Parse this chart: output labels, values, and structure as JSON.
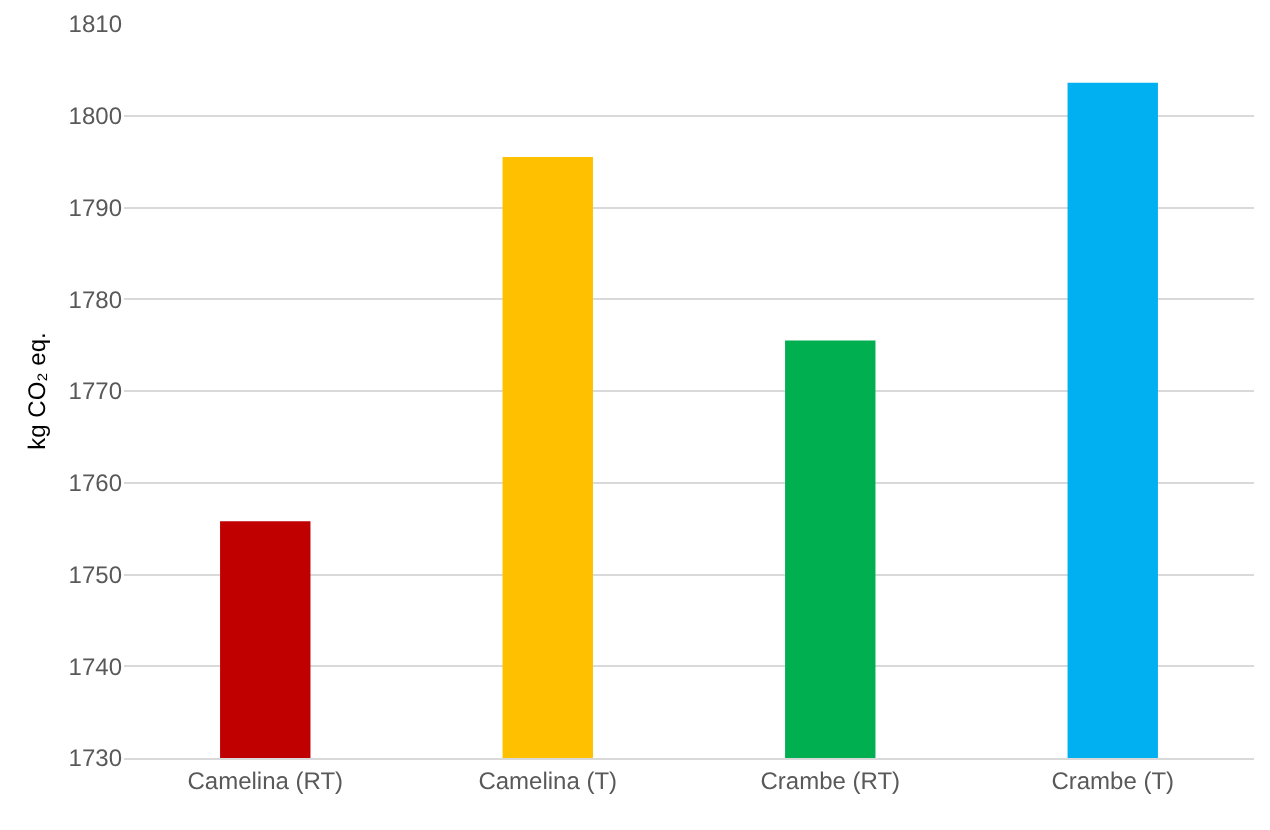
{
  "chart_data": {
    "type": "bar",
    "ylabel": "kg CO₂ eq.",
    "categories": [
      "Camelina (RT)",
      "Camelina (T)",
      "Crambe (RT)",
      "Crambe (T)"
    ],
    "values": [
      1755.8,
      1795.5,
      1775.5,
      1803.6
    ],
    "colors": [
      "#c00000",
      "#ffc000",
      "#00b050",
      "#00b0f0"
    ],
    "ylim": [
      1730,
      1810
    ],
    "yticks": [
      1730,
      1740,
      1750,
      1760,
      1770,
      1780,
      1790,
      1800,
      1810
    ],
    "grid": "y"
  }
}
